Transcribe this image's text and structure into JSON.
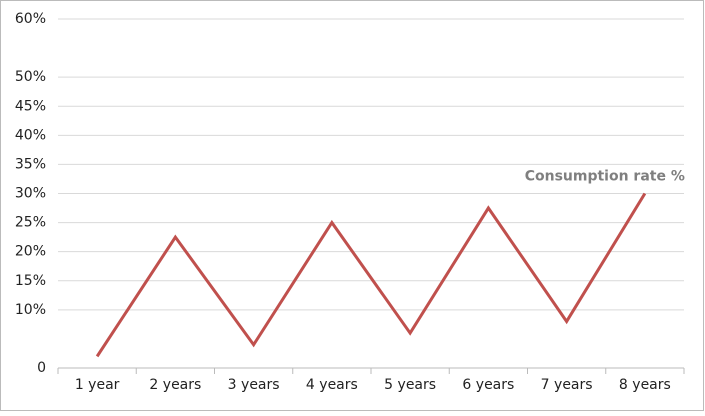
{
  "chart_data": {
    "type": "line",
    "categories": [
      "1 year",
      "2 years",
      "3 years",
      "4 years",
      "5 years",
      "6 years",
      "7 years",
      "8 years"
    ],
    "series": [
      {
        "name": "Consumption rate %",
        "color": "#c0504d",
        "values": [
          2,
          22.5,
          4,
          25,
          6,
          27.5,
          8,
          30
        ]
      }
    ],
    "ylim": [
      0,
      60
    ],
    "yticks": [
      0,
      {
        "value": 10,
        "label": "10%"
      },
      {
        "value": 15,
        "label": "15%"
      },
      {
        "value": 20,
        "label": "20%"
      },
      {
        "value": 25,
        "label": "25%"
      },
      {
        "value": 30,
        "label": "30%"
      },
      {
        "value": 35,
        "label": "35%"
      },
      {
        "value": 40,
        "label": "40%"
      },
      {
        "value": 45,
        "label": "45%"
      },
      {
        "value": 50,
        "label": "50%"
      },
      {
        "value": 60,
        "label": "60%"
      }
    ],
    "grid": true
  }
}
